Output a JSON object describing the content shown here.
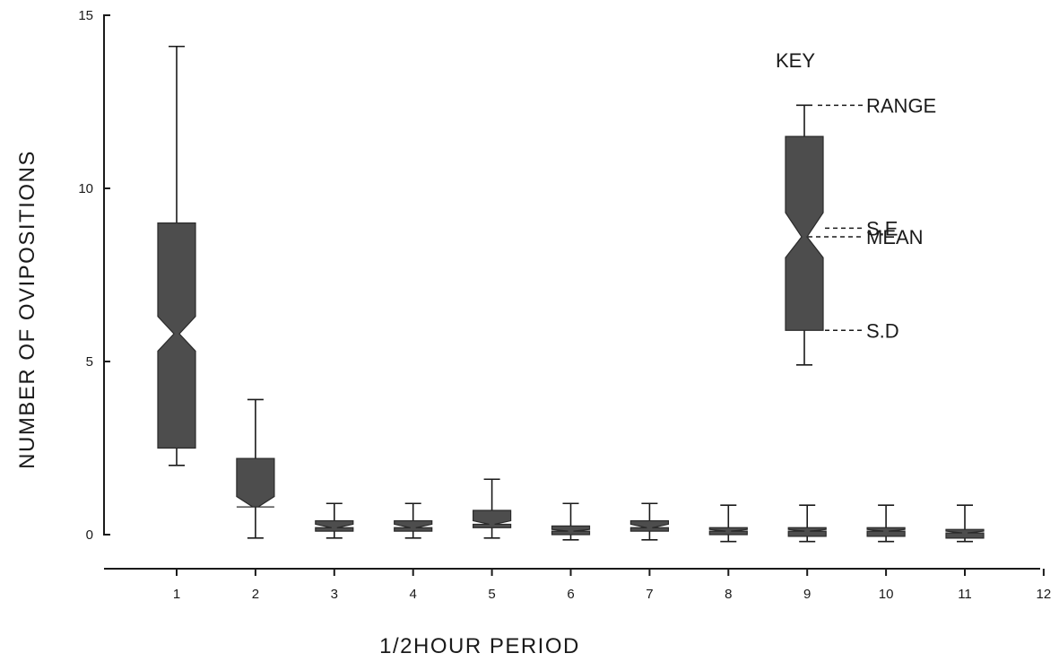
{
  "chart_data": {
    "type": "box",
    "xlabel": "1/2HOUR PERIOD",
    "ylabel": "NUMBER OF OVIPOSITIONS",
    "ylim": [
      0,
      15
    ],
    "yticks": [
      0,
      5,
      10,
      15
    ],
    "xticks": [
      1,
      2,
      3,
      4,
      5,
      6,
      7,
      8,
      9,
      10,
      11,
      12
    ],
    "series": [
      {
        "x": 1,
        "mean": 5.8,
        "se_low": 5.3,
        "se_high": 6.3,
        "sd_low": 2.5,
        "sd_high": 9.0,
        "range_low": 2.0,
        "range_high": 14.1
      },
      {
        "x": 2,
        "mean": 0.8,
        "se_low": 0.8,
        "se_high": 1.1,
        "sd_low": 0.8,
        "sd_high": 2.2,
        "range_low": -0.1,
        "range_high": 3.9
      },
      {
        "x": 3,
        "mean": 0.2,
        "se_low": 0.2,
        "se_high": 0.3,
        "sd_low": 0.1,
        "sd_high": 0.4,
        "range_low": -0.1,
        "range_high": 0.9
      },
      {
        "x": 4,
        "mean": 0.2,
        "se_low": 0.2,
        "se_high": 0.3,
        "sd_low": 0.1,
        "sd_high": 0.4,
        "range_low": -0.1,
        "range_high": 0.9
      },
      {
        "x": 5,
        "mean": 0.3,
        "se_low": 0.3,
        "se_high": 0.4,
        "sd_low": 0.2,
        "sd_high": 0.7,
        "range_low": -0.1,
        "range_high": 1.6
      },
      {
        "x": 6,
        "mean": 0.1,
        "se_low": 0.1,
        "se_high": 0.15,
        "sd_low": 0.0,
        "sd_high": 0.25,
        "range_low": -0.15,
        "range_high": 0.9
      },
      {
        "x": 7,
        "mean": 0.2,
        "se_low": 0.2,
        "se_high": 0.3,
        "sd_low": 0.1,
        "sd_high": 0.4,
        "range_low": -0.15,
        "range_high": 0.9
      },
      {
        "x": 8,
        "mean": 0.1,
        "se_low": 0.1,
        "se_high": 0.15,
        "sd_low": 0.0,
        "sd_high": 0.2,
        "range_low": -0.2,
        "range_high": 0.85
      },
      {
        "x": 9,
        "mean": 0.1,
        "se_low": 0.1,
        "se_high": 0.15,
        "sd_low": -0.05,
        "sd_high": 0.2,
        "range_low": -0.2,
        "range_high": 0.85
      },
      {
        "x": 10,
        "mean": 0.1,
        "se_low": 0.1,
        "se_high": 0.15,
        "sd_low": -0.05,
        "sd_high": 0.2,
        "range_low": -0.2,
        "range_high": 0.85
      },
      {
        "x": 11,
        "mean": 0.05,
        "se_low": 0.05,
        "se_high": 0.1,
        "sd_low": -0.1,
        "sd_high": 0.15,
        "range_low": -0.2,
        "range_high": 0.85
      }
    ],
    "key": {
      "title": "KEY",
      "labels": {
        "range": "RANGE",
        "se": "S.E",
        "mean": "MEAN",
        "sd": "S.D"
      },
      "placement": "top-right",
      "example": {
        "mean": 8.6,
        "se_low": 8.0,
        "se_high": 9.3,
        "sd_low": 5.9,
        "sd_high": 11.5,
        "range_low": 4.9,
        "range_high": 12.4
      }
    },
    "colors": {
      "box": "#4d4d4d",
      "line": "#1a1a1a"
    }
  }
}
